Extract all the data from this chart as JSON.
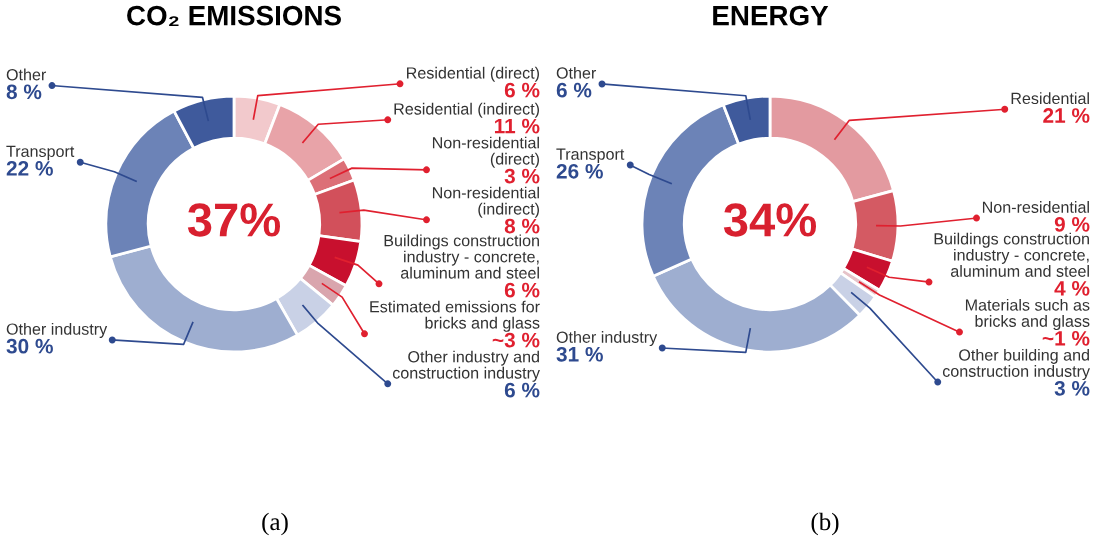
{
  "chart_data": [
    {
      "type": "donut",
      "title": "CO₂ EMISSIONS",
      "categories": [
        "Residential (direct)",
        "Residential (indirect)",
        "Non-residential (direct)",
        "Non-residential (indirect)",
        "Buildings construction industry - concrete, aluminum and steel",
        "Estimated emissions for bricks and glass",
        "Other industry and construction industry",
        "Other industry",
        "Transport",
        "Other"
      ],
      "values": [
        6,
        11,
        3,
        8,
        6,
        3,
        6,
        30,
        22,
        8
      ],
      "value_labels": [
        "6 %",
        "11 %",
        "3 %",
        "8 %",
        "6 %",
        "~3 %",
        "6 %",
        "30 %",
        "22 %",
        "8 %"
      ],
      "colors": [
        "#f2c9cc",
        "#e8a3a8",
        "#dc6f77",
        "#d2505b",
        "#c8102e",
        "#d9a5ad",
        "#c9d1e6",
        "#9eaed0",
        "#6c83b7",
        "#3f5a9c"
      ],
      "annotations": [
        "37%",
        "(a)"
      ],
      "legend": false
    },
    {
      "type": "donut",
      "title": "ENERGY",
      "categories": [
        "Residential",
        "Non-residential",
        "Buildings construction industry - concrete, aluminum and steel",
        "Materials such as bricks and glass",
        "Other building and construction industry",
        "Other industry",
        "Transport",
        "Other"
      ],
      "values": [
        21,
        9,
        4,
        1,
        3,
        31,
        26,
        6
      ],
      "value_labels": [
        "21 %",
        "9 %",
        "4 %",
        "~1 %",
        "3 %",
        "31 %",
        "26 %",
        "6 %"
      ],
      "colors": [
        "#e39aa0",
        "#d45a63",
        "#c8102e",
        "#e6c3c9",
        "#c9d1e6",
        "#9eaed0",
        "#6c83b7",
        "#3f5a9c"
      ],
      "annotations": [
        "34%",
        "(b)"
      ],
      "legend": false
    }
  ]
}
